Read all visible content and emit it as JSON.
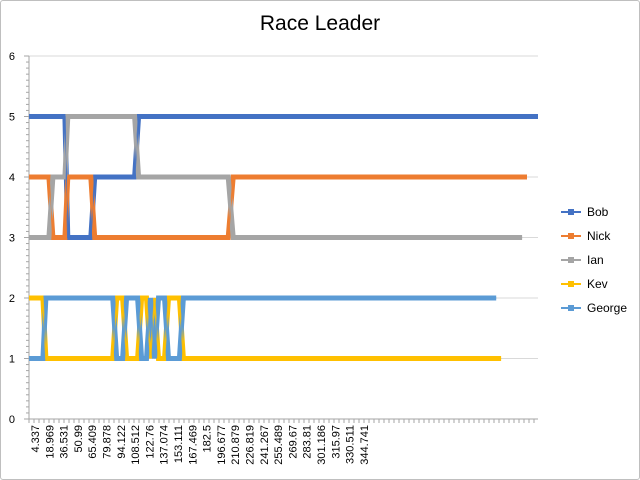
{
  "chart_data": {
    "type": "line",
    "title": "Race Leader",
    "xlabel": "",
    "ylabel": "",
    "ylim": [
      0,
      6
    ],
    "yticks": [
      0,
      1,
      2,
      3,
      4,
      5,
      6
    ],
    "grid": "horizontal",
    "legend_position": "right",
    "x_tick_labels": [
      "4.337",
      "18.969",
      "36.531",
      "50.99",
      "65.409",
      "79.878",
      "94.122",
      "108.512",
      "122.76",
      "137.074",
      "153.111",
      "167.469",
      "182.5",
      "196.677",
      "210.879",
      "226.819",
      "241.267",
      "255.489",
      "269.67",
      "283.81",
      "301.186",
      "315.97",
      "330.511",
      "344.741"
    ],
    "series": [
      {
        "name": "Bob",
        "color": "#4472c4",
        "points": [
          [
            0,
            5
          ],
          [
            36,
            5
          ],
          [
            39,
            3
          ],
          [
            62,
            3
          ],
          [
            66,
            4
          ],
          [
            106,
            4
          ],
          [
            110,
            5
          ],
          [
            511,
            5
          ]
        ]
      },
      {
        "name": "Nick",
        "color": "#ed7d31",
        "points": [
          [
            0,
            4
          ],
          [
            20,
            4
          ],
          [
            24,
            3
          ],
          [
            36,
            3
          ],
          [
            39,
            4
          ],
          [
            62,
            4
          ],
          [
            66,
            3
          ],
          [
            200,
            3
          ],
          [
            205,
            4
          ],
          [
            500,
            4
          ]
        ]
      },
      {
        "name": "Ian",
        "color": "#a5a5a5",
        "points": [
          [
            0,
            3
          ],
          [
            20,
            3
          ],
          [
            24,
            4
          ],
          [
            36,
            4
          ],
          [
            39,
            5
          ],
          [
            106,
            5
          ],
          [
            110,
            4
          ],
          [
            200,
            4
          ],
          [
            205,
            3
          ],
          [
            495,
            3
          ]
        ]
      },
      {
        "name": "Kev",
        "color": "#ffc000",
        "points": [
          [
            0,
            2
          ],
          [
            14,
            2
          ],
          [
            17,
            1
          ],
          [
            84,
            1
          ],
          [
            88,
            2
          ],
          [
            94,
            2
          ],
          [
            98,
            1
          ],
          [
            109,
            1
          ],
          [
            113,
            2
          ],
          [
            118,
            2
          ],
          [
            122,
            1
          ],
          [
            126,
            2
          ],
          [
            130,
            1
          ],
          [
            136,
            1
          ],
          [
            140,
            2
          ],
          [
            151,
            2
          ],
          [
            155,
            1
          ],
          [
            474,
            1
          ]
        ]
      },
      {
        "name": "George",
        "color": "#5b9bd5",
        "points": [
          [
            0,
            1
          ],
          [
            14,
            1
          ],
          [
            17,
            2
          ],
          [
            84,
            2
          ],
          [
            88,
            1
          ],
          [
            94,
            1
          ],
          [
            98,
            2
          ],
          [
            109,
            2
          ],
          [
            113,
            1
          ],
          [
            118,
            1
          ],
          [
            122,
            2
          ],
          [
            126,
            1
          ],
          [
            130,
            2
          ],
          [
            136,
            2
          ],
          [
            140,
            1
          ],
          [
            151,
            1
          ],
          [
            155,
            2
          ],
          [
            469,
            2
          ]
        ]
      }
    ]
  }
}
